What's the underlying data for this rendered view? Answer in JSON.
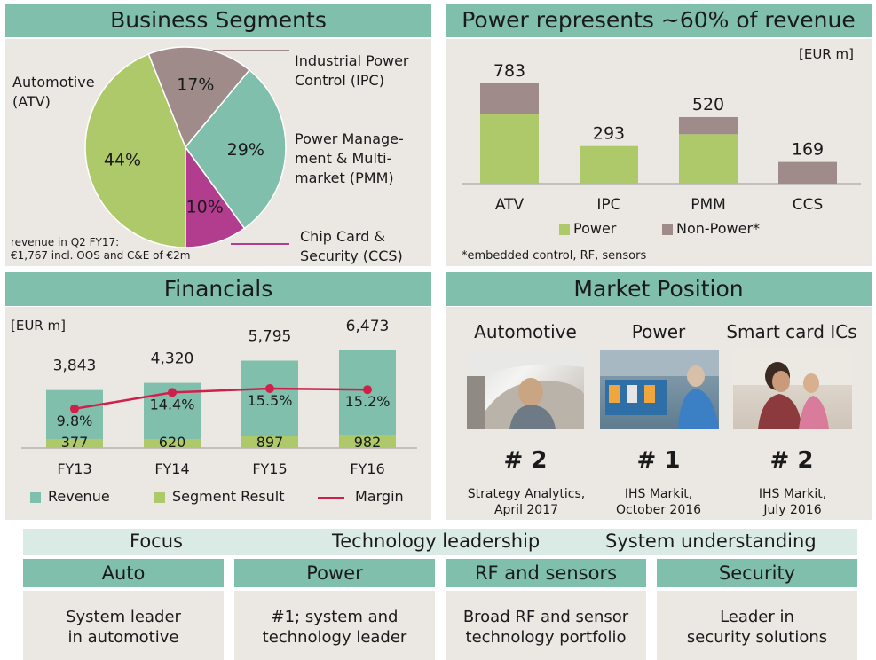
{
  "segments": {
    "title": "Business Segments",
    "labels": {
      "atv": [
        "Automotive",
        "(ATV)"
      ],
      "ipc": [
        "Industrial Power",
        "Control (IPC)"
      ],
      "pmm": [
        "Power Manage-",
        "ment & Multi-",
        "market (PMM)"
      ],
      "ccs": [
        "Chip Card &",
        "Security (CCS)"
      ]
    },
    "note": [
      "revenue in Q2 FY17:",
      "€1,767 incl. OOS and C&E of €2m"
    ]
  },
  "power": {
    "title": "Power represents ~60% of revenue",
    "unit": "[EUR m]",
    "footnote": "*embedded control, RF, sensors"
  },
  "financials": {
    "title": "Financials",
    "unit": "[EUR m]"
  },
  "market": {
    "title": "Market Position",
    "items": [
      {
        "title": "Automotive",
        "rank": "# 2",
        "source": [
          "Strategy Analytics,",
          "April 2017"
        ]
      },
      {
        "title": "Power",
        "rank": "# 1",
        "source": [
          "IHS Markit,",
          "October 2016"
        ]
      },
      {
        "title": "Smart card ICs",
        "rank": "# 2",
        "source": [
          "IHS Markit,",
          "July 2016"
        ]
      }
    ]
  },
  "bottom": {
    "banner": [
      "Focus",
      "Technology leadership",
      "System understanding"
    ],
    "pillars": [
      {
        "head": "Auto",
        "body": [
          "System leader",
          "in automotive"
        ]
      },
      {
        "head": "Power",
        "body": [
          "#1; system and",
          "technology leader"
        ]
      },
      {
        "head": "RF and sensors",
        "body": [
          "Broad RF and sensor",
          "technology portfolio"
        ]
      },
      {
        "head": "Security",
        "body": [
          "Leader in",
          "security solutions"
        ]
      }
    ]
  },
  "colors": {
    "teal": "#7fbfac",
    "green": "#aec96a",
    "mauve": "#9e8b8a",
    "magenta": "#b23c8e",
    "red": "#d11f4b"
  },
  "chart_data": [
    {
      "type": "pie",
      "title": "Business Segments",
      "slices": [
        {
          "label": "Automotive (ATV)",
          "value": 44,
          "display": "44%"
        },
        {
          "label": "Industrial Power Control (IPC)",
          "value": 17,
          "display": "17%"
        },
        {
          "label": "Power Management & Multi-market (PMM)",
          "value": 29,
          "display": "29%"
        },
        {
          "label": "Chip Card & Security (CCS)",
          "value": 10,
          "display": "10%"
        }
      ]
    },
    {
      "type": "bar",
      "title": "Power represents ~60% of revenue",
      "categories": [
        "ATV",
        "IPC",
        "PMM",
        "CCS"
      ],
      "totals": [
        "783",
        "293",
        "520",
        "169"
      ],
      "series": [
        {
          "name": "Power",
          "values": [
            541,
            293,
            386,
            0
          ]
        },
        {
          "name": "Non-Power*",
          "values": [
            242,
            0,
            134,
            169
          ]
        }
      ],
      "ylim": [
        0,
        783
      ]
    },
    {
      "type": "bar",
      "title": "Financials",
      "categories": [
        "FY13",
        "FY14",
        "FY15",
        "FY16"
      ],
      "series": [
        {
          "name": "Revenue",
          "values": [
            3843,
            4320,
            5795,
            6473
          ],
          "labels": [
            "3,843",
            "4,320",
            "5,795",
            "6,473"
          ]
        },
        {
          "name": "Segment Result",
          "values": [
            377,
            620,
            897,
            982
          ],
          "labels": [
            "377",
            "620",
            "897",
            "982"
          ]
        },
        {
          "name": "Margin",
          "values": [
            9.8,
            14.4,
            15.5,
            15.2
          ],
          "labels": [
            "9.8%",
            "14.4%",
            "15.5%",
            "15.2%"
          ]
        }
      ],
      "ylim": [
        0,
        6473
      ]
    }
  ]
}
